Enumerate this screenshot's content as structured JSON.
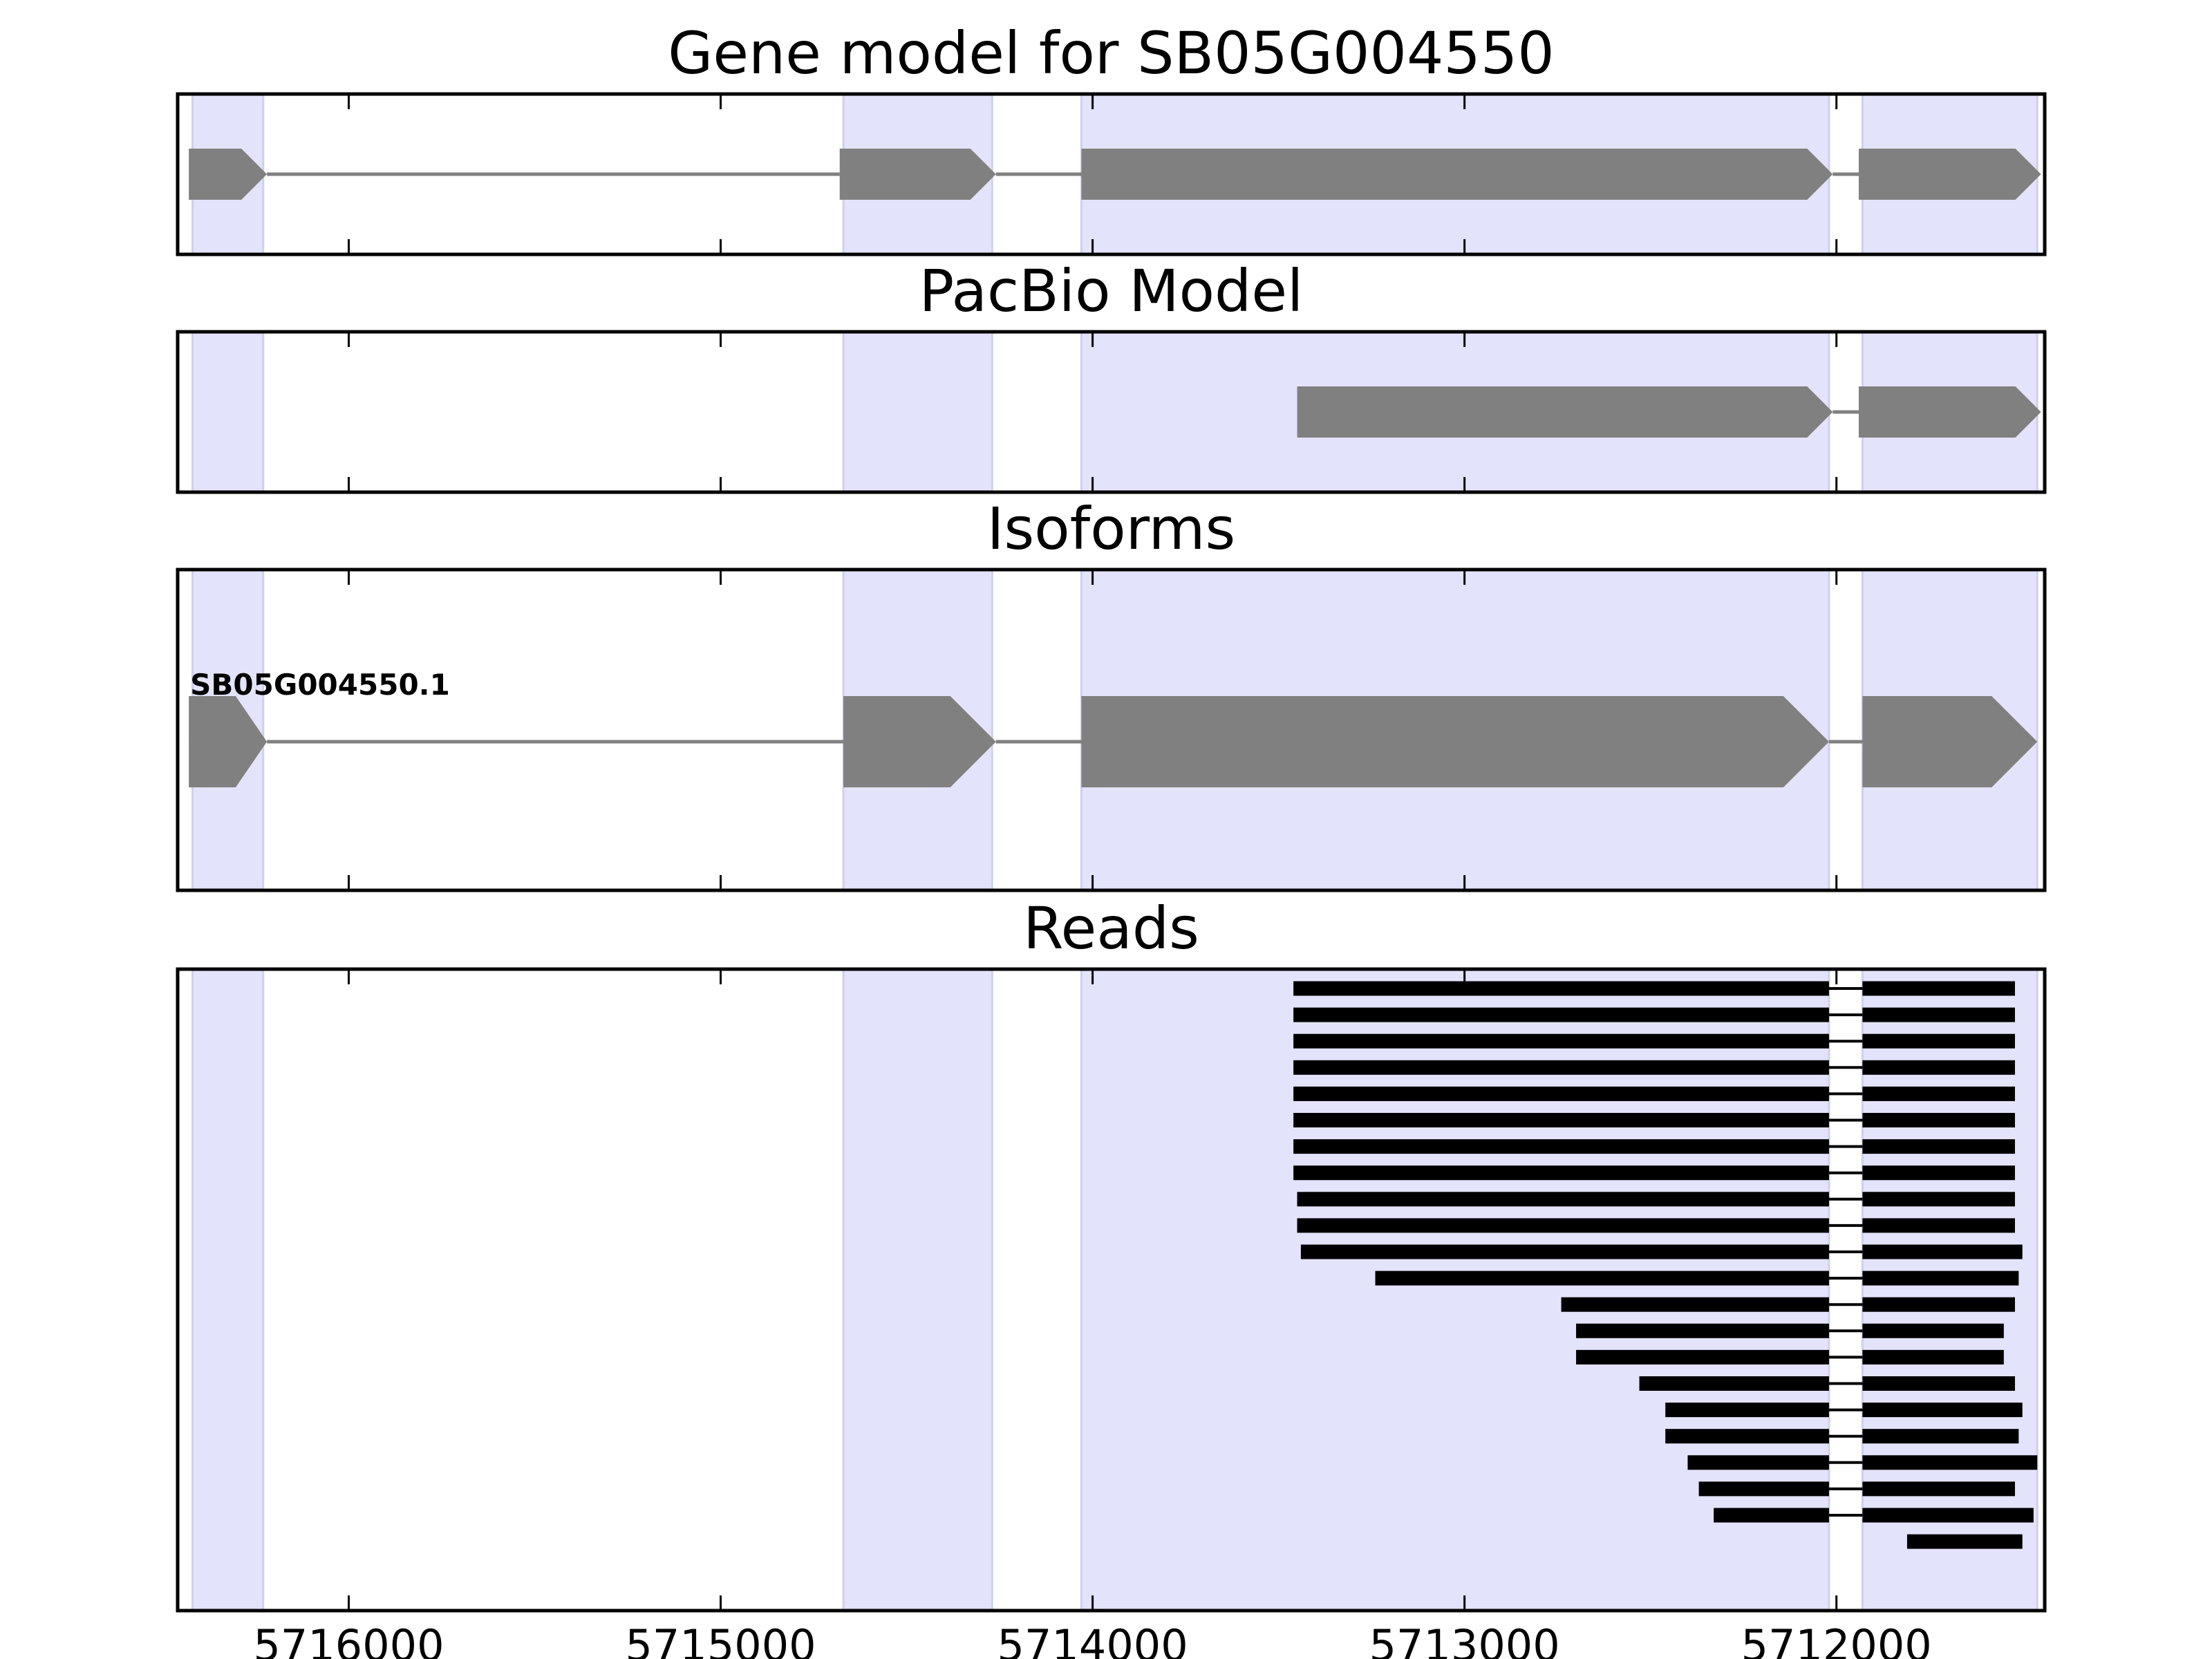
{
  "chart_data": {
    "type": "gene-track",
    "x_axis": {
      "lim": [
        5716460,
        5711440
      ],
      "ticks": [
        5716000,
        5715000,
        5714000,
        5713000,
        5712000
      ],
      "tick_labels": [
        "5716000",
        "5715000",
        "5714000",
        "5713000",
        "5712000"
      ],
      "direction": "decreasing-left-to-right"
    },
    "shaded_exons": [
      [
        5716420,
        5716230
      ],
      [
        5714670,
        5714270
      ],
      [
        5714030,
        5712020
      ],
      [
        5711930,
        5711460
      ]
    ],
    "colors": {
      "shade": "#e3e3fb",
      "shade_edge": "#cfcff0",
      "model": "#808080",
      "read": "#000000"
    },
    "panels": [
      {
        "title": "Gene model for SB05G004550",
        "exons": [
          [
            5716430,
            5716220
          ],
          [
            5714680,
            5714260
          ],
          [
            5714030,
            5712010
          ],
          [
            5711940,
            5711450
          ]
        ]
      },
      {
        "title": "PacBio Model",
        "exons": [
          [
            5713450,
            5712010
          ],
          [
            5711940,
            5711450
          ]
        ]
      },
      {
        "title": "Isoforms",
        "isoform_label": "SB05G004550.1",
        "exons": [
          [
            5716430,
            5716220
          ],
          [
            5714670,
            5714260
          ],
          [
            5714030,
            5712020
          ],
          [
            5711930,
            5711460
          ]
        ]
      },
      {
        "title": "Reads",
        "reads": [
          [
            [
              5713460,
              5712020
            ],
            [
              5711930,
              5711520
            ]
          ],
          [
            [
              5713460,
              5712020
            ],
            [
              5711930,
              5711520
            ]
          ],
          [
            [
              5713460,
              5712020
            ],
            [
              5711930,
              5711520
            ]
          ],
          [
            [
              5713460,
              5712020
            ],
            [
              5711930,
              5711520
            ]
          ],
          [
            [
              5713460,
              5712020
            ],
            [
              5711930,
              5711520
            ]
          ],
          [
            [
              5713460,
              5712020
            ],
            [
              5711930,
              5711520
            ]
          ],
          [
            [
              5713460,
              5712020
            ],
            [
              5711930,
              5711520
            ]
          ],
          [
            [
              5713460,
              5712020
            ],
            [
              5711930,
              5711520
            ]
          ],
          [
            [
              5713450,
              5712020
            ],
            [
              5711930,
              5711520
            ]
          ],
          [
            [
              5713450,
              5712020
            ],
            [
              5711930,
              5711520
            ]
          ],
          [
            [
              5713440,
              5712020
            ],
            [
              5711930,
              5711500
            ]
          ],
          [
            [
              5713240,
              5712020
            ],
            [
              5711930,
              5711510
            ]
          ],
          [
            [
              5712740,
              5712020
            ],
            [
              5711930,
              5711520
            ]
          ],
          [
            [
              5712700,
              5712020
            ],
            [
              5711930,
              5711550
            ]
          ],
          [
            [
              5712700,
              5712020
            ],
            [
              5711930,
              5711550
            ]
          ],
          [
            [
              5712530,
              5712020
            ],
            [
              5711930,
              5711520
            ]
          ],
          [
            [
              5712460,
              5712020
            ],
            [
              5711930,
              5711500
            ]
          ],
          [
            [
              5712460,
              5712020
            ],
            [
              5711930,
              5711510
            ]
          ],
          [
            [
              5712400,
              5712020
            ],
            [
              5711930,
              5711460
            ]
          ],
          [
            [
              5712370,
              5712020
            ],
            [
              5711930,
              5711520
            ]
          ],
          [
            [
              5712330,
              5712020
            ],
            [
              5711930,
              5711470
            ]
          ],
          [
            [
              5711810,
              5711500
            ]
          ]
        ]
      }
    ]
  }
}
